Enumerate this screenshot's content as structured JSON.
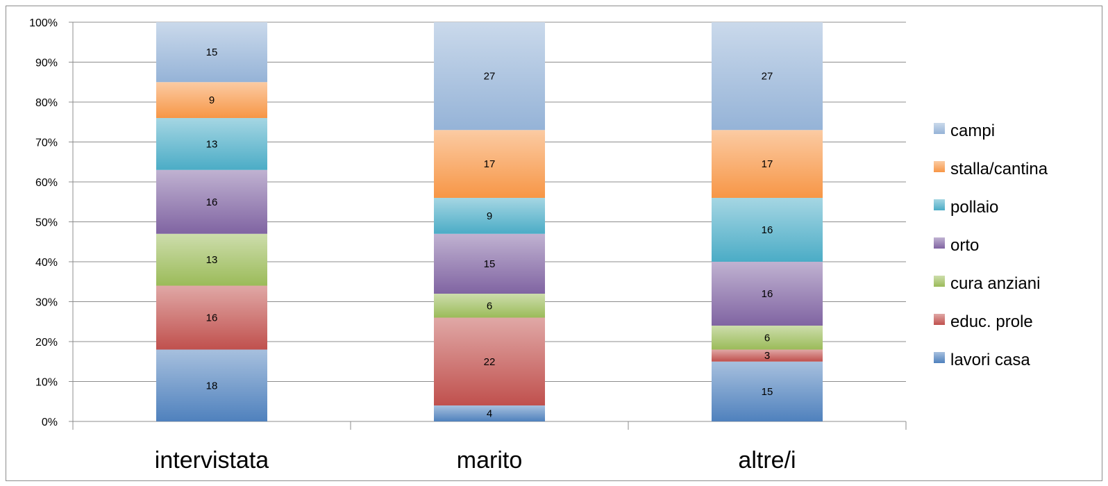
{
  "chart_data": {
    "type": "bar",
    "stacked": true,
    "percent": true,
    "categories": [
      "intervistata",
      "marito",
      "altre/i"
    ],
    "series": [
      {
        "name": "lavori casa",
        "color": "#4f81bd",
        "values": [
          18,
          4,
          15
        ]
      },
      {
        "name": "educ. prole",
        "color": "#c0504d",
        "values": [
          16,
          22,
          3
        ]
      },
      {
        "name": "cura anziani",
        "color": "#9bbb59",
        "values": [
          13,
          6,
          6
        ]
      },
      {
        "name": "orto",
        "color": "#8064a2",
        "values": [
          16,
          15,
          16
        ]
      },
      {
        "name": "pollaio",
        "color": "#4bacc6",
        "values": [
          13,
          9,
          16
        ]
      },
      {
        "name": "stalla/cantina",
        "color": "#f79646",
        "values": [
          9,
          17,
          17
        ]
      },
      {
        "name": "campi",
        "color": "#95b3d7",
        "values": [
          15,
          27,
          27
        ]
      }
    ],
    "yticks": [
      "0%",
      "10%",
      "20%",
      "30%",
      "40%",
      "50%",
      "60%",
      "70%",
      "80%",
      "90%",
      "100%"
    ],
    "ylim": [
      0,
      100
    ],
    "grid": true,
    "legend_position": "right"
  }
}
